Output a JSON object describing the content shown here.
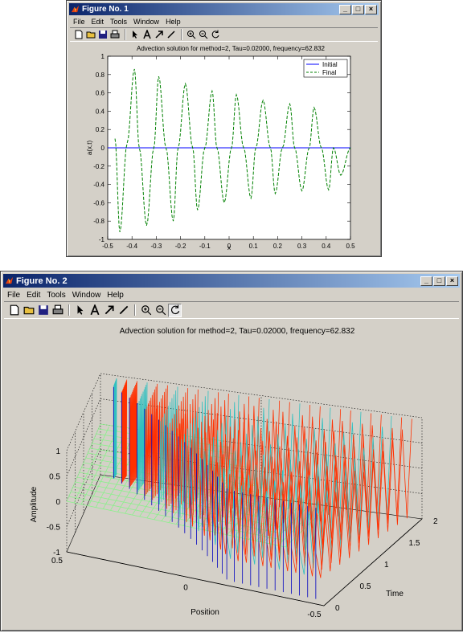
{
  "figure1": {
    "title": "Figure No. 1",
    "menu": [
      "File",
      "Edit",
      "Tools",
      "Window",
      "Help"
    ],
    "window_buttons": [
      "_",
      "□",
      "×"
    ],
    "chart_data": {
      "type": "line",
      "title": "Advection solution for method=2, Tau=0.02000, frequency=62.832",
      "xlabel": "x",
      "ylabel": "a(x,t)",
      "xlim": [
        -0.5,
        0.5
      ],
      "ylim": [
        -1,
        1
      ],
      "xticks": [
        "-0.5",
        "-0.4",
        "-0.3",
        "-0.2",
        "-0.1",
        "0",
        "0.1",
        "0.2",
        "0.3",
        "0.4",
        "0.5"
      ],
      "yticks": [
        "1",
        "0.8",
        "0.6",
        "0.4",
        "0.2",
        "0",
        "-0.2",
        "-0.4",
        "-0.6",
        "-0.8",
        "-1"
      ],
      "legend_position": "top-right",
      "series": [
        {
          "name": "Initial",
          "color": "#0000ff",
          "style": "solid",
          "x": [
            -0.5,
            0.5
          ],
          "values": [
            0,
            0
          ]
        },
        {
          "name": "Final",
          "color": "#008000",
          "style": "dashed",
          "x": [
            -0.47,
            -0.45,
            -0.42,
            -0.39,
            -0.37,
            -0.34,
            -0.31,
            -0.29,
            -0.26,
            -0.23,
            -0.21,
            -0.18,
            -0.15,
            -0.13,
            -0.1,
            -0.07,
            -0.05,
            -0.02,
            0.01,
            0.03,
            0.06,
            0.09,
            0.11,
            0.14,
            0.17,
            0.19,
            0.22,
            0.25,
            0.27,
            0.3,
            0.33,
            0.35,
            0.38,
            0.41,
            0.43,
            0.46,
            0.5
          ],
          "values": [
            0.1,
            -0.92,
            0.05,
            0.86,
            0.0,
            -0.85,
            0.0,
            0.78,
            0.0,
            -0.8,
            0.0,
            0.7,
            0.0,
            -0.68,
            0.0,
            0.62,
            0.0,
            -0.6,
            0.0,
            0.58,
            0.0,
            -0.55,
            0.0,
            0.52,
            0.0,
            -0.5,
            0.0,
            0.48,
            0.0,
            -0.47,
            0.0,
            0.44,
            0.0,
            -0.46,
            0.0,
            -0.3,
            0.0
          ]
        }
      ]
    }
  },
  "figure2": {
    "title": "Figure No. 2",
    "menu": [
      "File",
      "Edit",
      "Tools",
      "Window",
      "Help"
    ],
    "window_buttons": [
      "_",
      "□",
      "×"
    ],
    "chart_data": {
      "type": "surface",
      "title": "Advection solution for method=2, Tau=0.02000, frequency=62.832",
      "xlabel": "Position",
      "ylabel": "Time",
      "zlabel": "Amplitude",
      "position_ticks": [
        "0.5",
        "0",
        "-0.5"
      ],
      "time_ticks": [
        "0",
        "0.5",
        "1",
        "1.5",
        "2"
      ],
      "amplitude_ticks": [
        "1",
        "0.5",
        "0",
        "-0.5",
        "-1"
      ],
      "position_range": [
        -0.5,
        0.5
      ],
      "time_range": [
        0,
        2
      ],
      "amplitude_range": [
        -1,
        1
      ],
      "colors": {
        "surface_flat": "#8cf08c",
        "peaks_front": "#ff3000",
        "peaks_back": "#30c0c0",
        "troughs": "#0000c0"
      }
    }
  }
}
